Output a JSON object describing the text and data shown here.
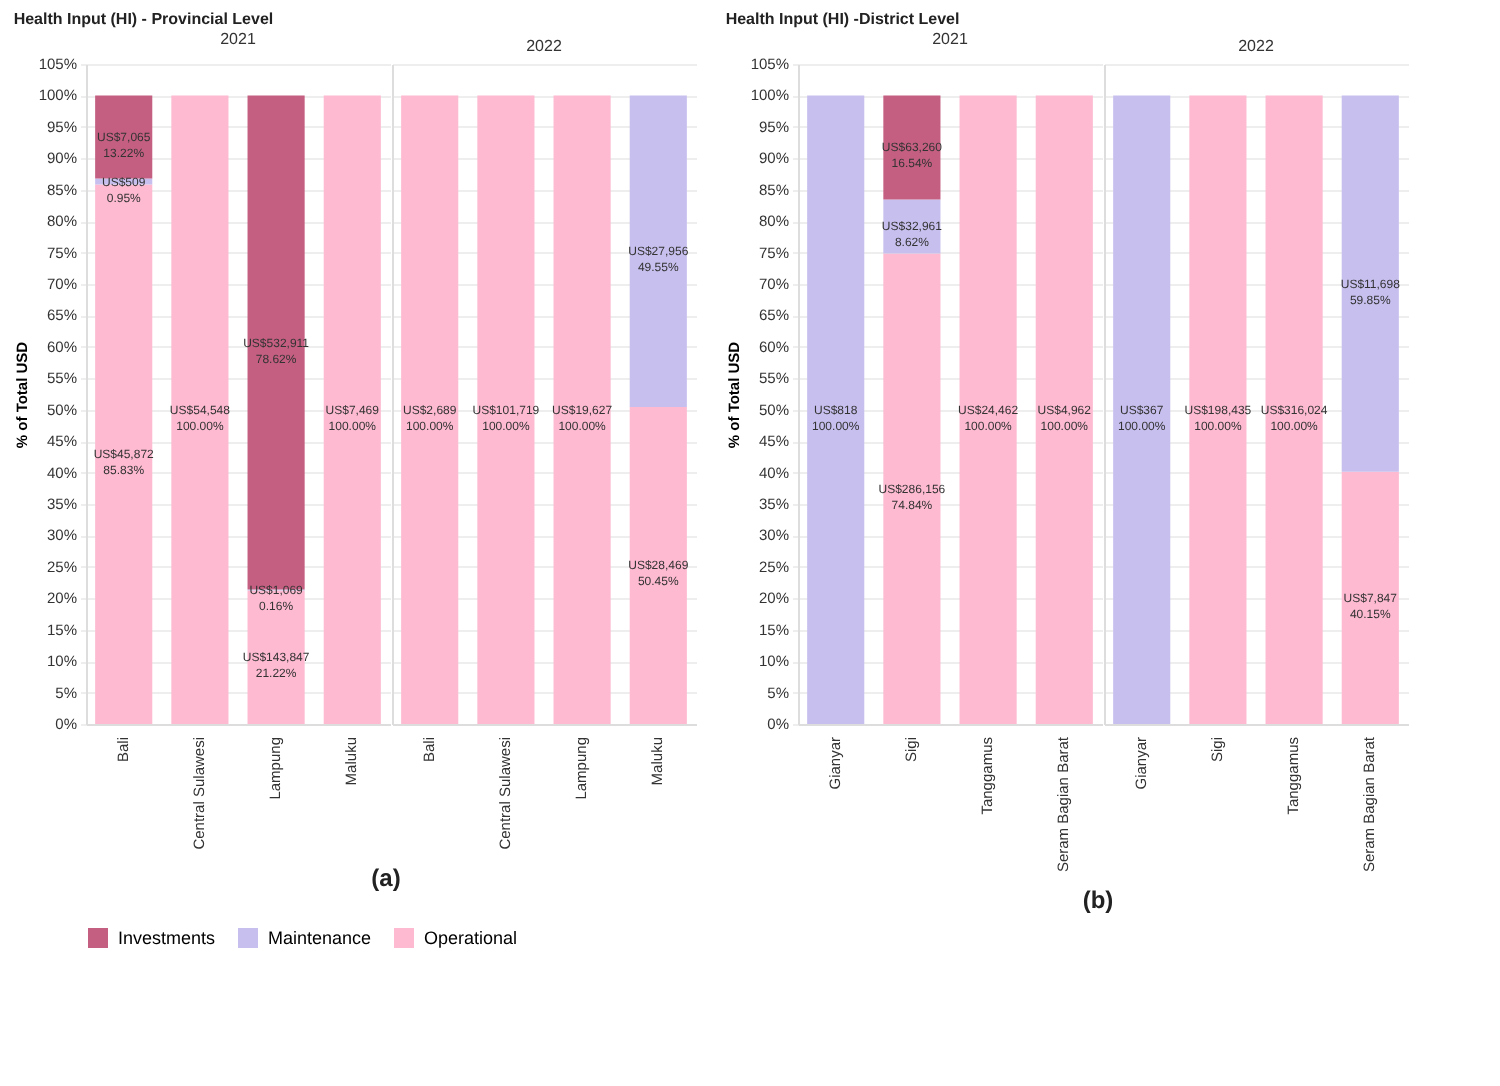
{
  "chart_data": [
    {
      "type": "bar",
      "title": "Health Input (HI) - Provincial Level",
      "subtitle": "2021",
      "ylabel": "% of Total USD",
      "categories": [
        "Bali",
        "Central Sulawesi",
        "Lampung",
        "Maluku"
      ],
      "stacked": true,
      "grid": "y",
      "legend": "bottom",
      "annotations": [
        "(a)"
      ],
      "ylim": [
        0,
        105
      ],
      "yticks": [
        {
          "value": 0,
          "label": "0%"
        },
        {
          "value": 5,
          "label": "5%"
        },
        {
          "value": 10,
          "label": "10%"
        },
        {
          "value": 15,
          "label": "15%"
        },
        {
          "value": 20,
          "label": "20%"
        },
        {
          "value": 25,
          "label": "25%"
        },
        {
          "value": 30,
          "label": "30%"
        },
        {
          "value": 35,
          "label": "35%"
        },
        {
          "value": 40,
          "label": "40%"
        },
        {
          "value": 45,
          "label": "45%"
        },
        {
          "value": 50,
          "label": "50%"
        },
        {
          "value": 55,
          "label": "55%"
        },
        {
          "value": 60,
          "label": "60%"
        },
        {
          "value": 65,
          "label": "65%"
        },
        {
          "value": 70,
          "label": "70%"
        },
        {
          "value": 75,
          "label": "75%"
        },
        {
          "value": 80,
          "label": "80%"
        },
        {
          "value": 85,
          "label": "85%"
        },
        {
          "value": 90,
          "label": "90%"
        },
        {
          "value": 95,
          "label": "95%"
        },
        {
          "value": 100,
          "label": "100%"
        },
        {
          "value": 105,
          "label": "105%"
        }
      ],
      "series": [
        {
          "name": "Operational",
          "color": "#fdbad0",
          "values": [
            85.83,
            100,
            21.22,
            100
          ],
          "value_labels": [
            "US$45,872\n85.83%",
            "US$54,548\n100.00%",
            "US$143,847\n21.22%",
            "US$7,469\n100.00%"
          ]
        },
        {
          "name": "Maintenance",
          "color": "#c7bfee",
          "values": [
            0.95,
            null,
            0.16,
            null
          ],
          "value_labels": [
            "US$509\n0.95%",
            null,
            "US$1,069\n0.16%",
            null
          ]
        },
        {
          "name": "Investments",
          "color": "#c45f82",
          "values": [
            13.22,
            null,
            78.62,
            null
          ],
          "value_labels": [
            "US$7,065\n13.22%",
            null,
            "US$532,911\n78.62%",
            null
          ]
        }
      ]
    },
    {
      "type": "bar",
      "subtitle": "2022",
      "categories": [
        "Bali",
        "Central Sulawesi",
        "Lampung",
        "Maluku"
      ],
      "stacked": true,
      "grid": "y",
      "tick_labels": "x",
      "ylim": [
        0,
        105
      ],
      "yticks": [
        0,
        5,
        10,
        15,
        20,
        25,
        30,
        35,
        40,
        45,
        50,
        55,
        60,
        65,
        70,
        75,
        80,
        85,
        90,
        95,
        100,
        105
      ],
      "series": [
        {
          "name": "Operational",
          "color": "#fdbad0",
          "values": [
            100,
            100,
            100,
            50.45
          ],
          "value_labels": [
            "US$2,689\n100.00%",
            "US$101,719\n100.00%",
            "US$19,627\n100.00%",
            "US$28,469\n50.45%"
          ]
        },
        {
          "name": "Maintenance",
          "color": "#c7bfee",
          "values": [
            null,
            null,
            null,
            49.55
          ],
          "value_labels": [
            null,
            null,
            null,
            "US$27,956\n49.55%"
          ]
        }
      ]
    },
    {
      "type": "bar",
      "title": "Health Input (HI) -District Level",
      "subtitle": "2021",
      "ylabel": "% of Total USD",
      "categories": [
        "Gianyar",
        "Sigi",
        "Tanggamus",
        "Seram Bagian Barat"
      ],
      "stacked": true,
      "grid": "y",
      "annotations": [
        "(b)"
      ],
      "ylim": [
        0,
        105
      ],
      "yticks": [
        {
          "value": 0,
          "label": "0%"
        },
        {
          "value": 5,
          "label": "5%"
        },
        {
          "value": 10,
          "label": "10%"
        },
        {
          "value": 15,
          "label": "15%"
        },
        {
          "value": 20,
          "label": "20%"
        },
        {
          "value": 25,
          "label": "25%"
        },
        {
          "value": 30,
          "label": "30%"
        },
        {
          "value": 35,
          "label": "35%"
        },
        {
          "value": 40,
          "label": "40%"
        },
        {
          "value": 45,
          "label": "45%"
        },
        {
          "value": 50,
          "label": "50%"
        },
        {
          "value": 55,
          "label": "55%"
        },
        {
          "value": 60,
          "label": "60%"
        },
        {
          "value": 65,
          "label": "65%"
        },
        {
          "value": 70,
          "label": "70%"
        },
        {
          "value": 75,
          "label": "75%"
        },
        {
          "value": 80,
          "label": "80%"
        },
        {
          "value": 85,
          "label": "85%"
        },
        {
          "value": 90,
          "label": "90%"
        },
        {
          "value": 95,
          "label": "95%"
        },
        {
          "value": 100,
          "label": "100%"
        },
        {
          "value": 105,
          "label": "105%"
        }
      ],
      "series": [
        {
          "name": "Operational",
          "color": "#fdbad0",
          "values": [
            null,
            74.84,
            100,
            100
          ],
          "value_labels": [
            null,
            "US$286,156\n74.84%",
            "US$24,462\n100.00%",
            "US$4,962\n100.00%"
          ]
        },
        {
          "name": "Maintenance",
          "color": "#c7bfee",
          "values": [
            100,
            8.62,
            null,
            null
          ],
          "value_labels": [
            "US$818\n100.00%",
            "US$32,961\n8.62%",
            null,
            null
          ]
        },
        {
          "name": "Investments",
          "color": "#c45f82",
          "values": [
            null,
            16.54,
            null,
            null
          ],
          "value_labels": [
            null,
            "US$63,260\n16.54%",
            null,
            null
          ]
        }
      ]
    },
    {
      "type": "bar",
      "subtitle": "2022",
      "categories": [
        "Gianyar",
        "Sigi",
        "Tanggamus",
        "Seram Bagian Barat"
      ],
      "stacked": true,
      "grid": "y",
      "tick_labels": "x",
      "ylim": [
        0,
        105
      ],
      "yticks": [
        0,
        5,
        10,
        15,
        20,
        25,
        30,
        35,
        40,
        45,
        50,
        55,
        60,
        65,
        70,
        75,
        80,
        85,
        90,
        95,
        100,
        105
      ],
      "series": [
        {
          "name": "Operational",
          "color": "#fdbad0",
          "values": [
            null,
            100,
            100,
            40.15
          ],
          "value_labels": [
            null,
            "US$198,435\n100.00%",
            "US$316,024\n100.00%",
            "US$7,847\n40.15%"
          ]
        },
        {
          "name": "Maintenance",
          "color": "#c7bfee",
          "values": [
            100,
            null,
            null,
            59.85
          ],
          "value_labels": [
            "US$367\n100.00%",
            null,
            null,
            "US$11,698\n59.85%"
          ]
        }
      ]
    }
  ]
}
